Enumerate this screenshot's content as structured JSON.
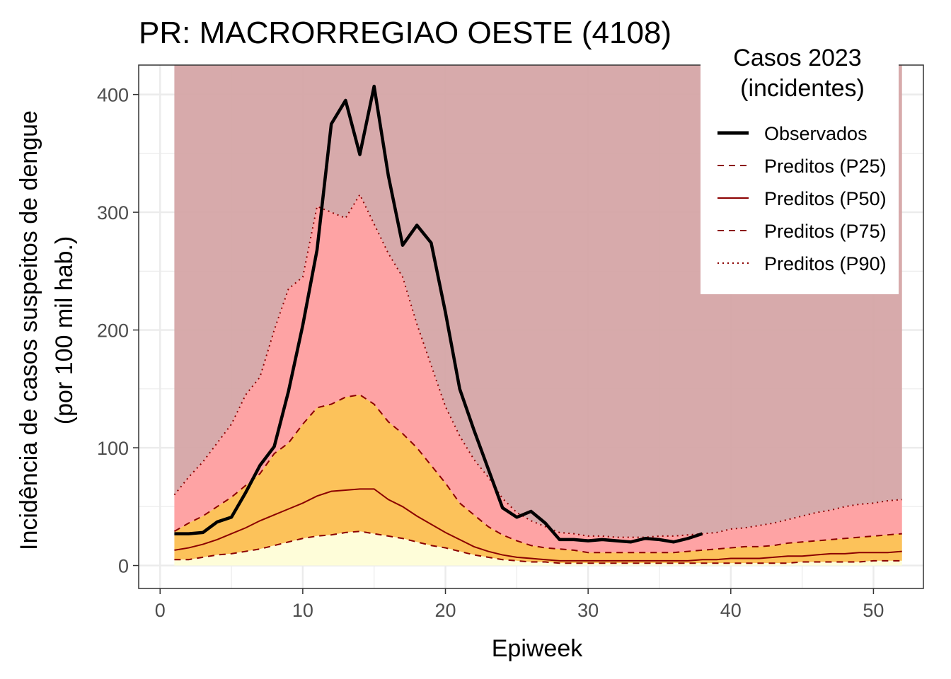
{
  "chart_data": {
    "type": "area",
    "title": "PR: MACRORREGIAO OESTE (4108)",
    "xlabel": "Epiweek",
    "ylabel_line1": "Incidência de casos suspeitos de dengue",
    "ylabel_line2": "(por 100 mil hab.)",
    "xlim": [
      -1.5,
      53.5
    ],
    "ylim": [
      -19.5,
      425
    ],
    "x_ticks": [
      0,
      10,
      20,
      30,
      40,
      50
    ],
    "x_tick_labels": [
      "0",
      "10",
      "20",
      "30",
      "40",
      "50"
    ],
    "y_ticks": [
      0,
      100,
      200,
      300,
      400
    ],
    "y_tick_labels": [
      "0",
      "100",
      "200",
      "300",
      "400"
    ],
    "grid": true,
    "legend": {
      "position": "top-right",
      "title_line1": "Casos 2023",
      "title_line2": "(incidentes)",
      "items": [
        {
          "label": "Observados",
          "style": "solid-thick",
          "color": "#000000"
        },
        {
          "label": "Preditos (P25)",
          "style": "dashed",
          "color": "#8b0000"
        },
        {
          "label": "Preditos (P50)",
          "style": "solid",
          "color": "#8b0000"
        },
        {
          "label": "Preditos (P75)",
          "style": "dashed",
          "color": "#8b0000"
        },
        {
          "label": "Preditos (P90)",
          "style": "dotted",
          "color": "#8b0000"
        }
      ]
    },
    "colors": {
      "band_top": "#d5a5a6",
      "band_p90": "#fea3a4",
      "band_p75": "#fcc25a",
      "band_p25": "#fefdd9",
      "predicted_line": "#8b0000",
      "observed_line": "#000000"
    },
    "weeks": [
      1,
      2,
      3,
      4,
      5,
      6,
      7,
      8,
      9,
      10,
      11,
      12,
      13,
      14,
      15,
      16,
      17,
      18,
      19,
      20,
      21,
      22,
      23,
      24,
      25,
      26,
      27,
      28,
      29,
      30,
      31,
      32,
      33,
      34,
      35,
      36,
      37,
      38,
      39,
      40,
      41,
      42,
      43,
      44,
      45,
      46,
      47,
      48,
      49,
      50,
      51,
      52
    ],
    "band_top_value": 425,
    "series": [
      {
        "name": "Preditos (P25)",
        "values": [
          5,
          5,
          7,
          9,
          10,
          12,
          14,
          17,
          20,
          23,
          25,
          26,
          28,
          29,
          27,
          25,
          23,
          20,
          17,
          15,
          12,
          9,
          7,
          5,
          4,
          3,
          3,
          2,
          2,
          2,
          2,
          2,
          2,
          2,
          2,
          2,
          2,
          2,
          2,
          2,
          2,
          2,
          2,
          2,
          3,
          3,
          3,
          3,
          3,
          4,
          4,
          4
        ]
      },
      {
        "name": "Preditos (P50)",
        "values": [
          13,
          15,
          18,
          22,
          27,
          32,
          38,
          43,
          48,
          53,
          59,
          63,
          64,
          65,
          65,
          56,
          50,
          42,
          35,
          28,
          22,
          16,
          12,
          9,
          7,
          6,
          5,
          4,
          4,
          4,
          4,
          4,
          4,
          4,
          4,
          4,
          4,
          5,
          5,
          6,
          6,
          6,
          7,
          8,
          8,
          9,
          10,
          10,
          11,
          11,
          11,
          12
        ]
      },
      {
        "name": "Preditos (P75)",
        "values": [
          29,
          36,
          42,
          50,
          58,
          68,
          78,
          95,
          104,
          120,
          134,
          137,
          143,
          145,
          137,
          122,
          112,
          100,
          85,
          70,
          53,
          43,
          33,
          26,
          21,
          17,
          15,
          14,
          13,
          11,
          11,
          11,
          11,
          11,
          11,
          11,
          12,
          13,
          14,
          15,
          16,
          16,
          17,
          19,
          20,
          21,
          22,
          23,
          24,
          25,
          26,
          27
        ]
      },
      {
        "name": "Preditos (P90)",
        "values": [
          60,
          75,
          88,
          104,
          120,
          145,
          160,
          200,
          235,
          245,
          305,
          300,
          295,
          315,
          290,
          265,
          245,
          205,
          170,
          135,
          110,
          90,
          75,
          57,
          45,
          38,
          33,
          28,
          27,
          25,
          25,
          24,
          24,
          24,
          25,
          25,
          26,
          27,
          28,
          31,
          32,
          34,
          36,
          39,
          42,
          45,
          47,
          50,
          52,
          53,
          55,
          56
        ]
      },
      {
        "name": "Observados",
        "values": [
          27,
          27,
          28,
          37,
          41,
          62,
          85,
          101,
          148,
          204,
          268,
          375,
          395,
          349,
          407,
          331,
          272,
          289,
          274,
          215,
          150,
          115,
          82,
          49,
          41,
          46,
          36,
          22,
          22,
          21,
          22,
          21,
          20,
          23,
          22,
          20,
          23,
          27
        ]
      }
    ]
  }
}
